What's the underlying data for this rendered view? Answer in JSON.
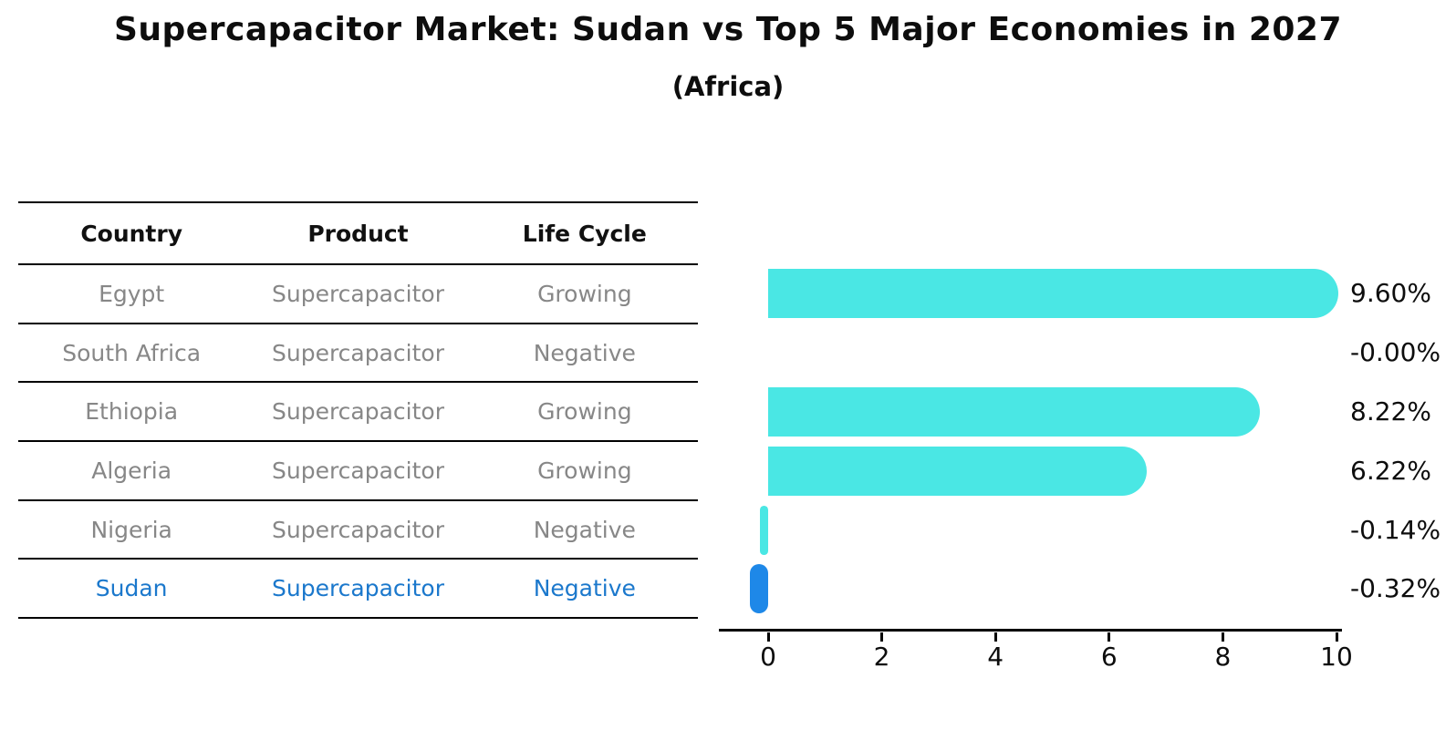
{
  "header": {
    "title": "Supercapacitor Market: Sudan vs Top 5 Major Economies in 2027",
    "subtitle": "(Africa)"
  },
  "table": {
    "columns": [
      "Country",
      "Product",
      "Life Cycle"
    ],
    "rows": [
      {
        "country": "Egypt",
        "product": "Supercapacitor",
        "life_cycle": "Growing",
        "highlight": false
      },
      {
        "country": "South Africa",
        "product": "Supercapacitor",
        "life_cycle": "Negative",
        "highlight": false
      },
      {
        "country": "Ethiopia",
        "product": "Supercapacitor",
        "life_cycle": "Growing",
        "highlight": false
      },
      {
        "country": "Algeria",
        "product": "Supercapacitor",
        "life_cycle": "Growing",
        "highlight": false
      },
      {
        "country": "Nigeria",
        "product": "Supercapacitor",
        "life_cycle": "Negative",
        "highlight": false
      },
      {
        "country": "Sudan",
        "product": "Supercapacitor",
        "life_cycle": "Negative",
        "highlight": true
      }
    ]
  },
  "chart_data": {
    "type": "bar",
    "orientation": "horizontal",
    "title": "",
    "xlabel": "",
    "ylabel": "",
    "categories": [
      "Egypt",
      "South Africa",
      "Ethiopia",
      "Algeria",
      "Nigeria",
      "Sudan"
    ],
    "values": [
      9.6,
      -0.0,
      8.22,
      6.22,
      -0.14,
      -0.32
    ],
    "value_labels": [
      "9.60%",
      "-0.00%",
      "8.22%",
      "6.22%",
      "-0.14%",
      "-0.32%"
    ],
    "x_ticks": [
      0,
      2,
      4,
      6,
      8,
      10
    ],
    "xlim": [
      -0.9,
      10.1
    ],
    "grid": false,
    "legend": false,
    "highlight_index": 5,
    "highlight_style": "dotted-border"
  },
  "colors": {
    "bar": "#4ae7e4",
    "highlight_bar": "#1e88e8",
    "highlight_text": "#1b78cc",
    "row_text": "#878787",
    "axis": "#000000"
  }
}
